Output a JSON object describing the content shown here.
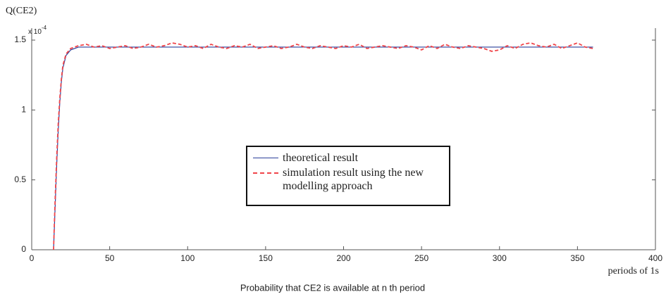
{
  "chart_data": {
    "type": "line",
    "y_label": "Q(CE2)",
    "y_multiplier": "x 10",
    "y_multiplier_exp": "-4",
    "x_label": "periods of 1s",
    "caption": "Probability that CE2 is available at n th period",
    "xlim": [
      0,
      400
    ],
    "xticks": [
      0,
      50,
      100,
      150,
      200,
      250,
      300,
      350,
      400
    ],
    "ylim": [
      0,
      1.5
    ],
    "yticks": [
      0,
      0.5,
      1,
      1.5
    ],
    "series": [
      {
        "name": "theoretical result",
        "color": "#2a3f9a",
        "dash": false,
        "x": [
          14,
          15,
          16,
          17,
          18,
          19,
          20,
          22,
          25,
          30,
          360
        ],
        "values": [
          0,
          0.3,
          0.6,
          0.85,
          1.05,
          1.2,
          1.3,
          1.39,
          1.43,
          1.45,
          1.45
        ]
      },
      {
        "name": "simulation result using the new modelling approach",
        "color": "#f0454a",
        "dash": true,
        "x": [
          14,
          15,
          16,
          17,
          18,
          19,
          20,
          22,
          25,
          30,
          35,
          40,
          45,
          50,
          55,
          60,
          65,
          70,
          75,
          80,
          85,
          90,
          95,
          100,
          105,
          110,
          115,
          120,
          125,
          130,
          135,
          140,
          145,
          150,
          155,
          160,
          165,
          170,
          175,
          180,
          185,
          190,
          195,
          200,
          205,
          210,
          215,
          220,
          225,
          230,
          235,
          240,
          245,
          250,
          255,
          260,
          265,
          270,
          275,
          280,
          285,
          290,
          295,
          300,
          305,
          310,
          315,
          320,
          325,
          330,
          335,
          340,
          345,
          350,
          355,
          360
        ],
        "values": [
          0,
          0.35,
          0.65,
          0.9,
          1.08,
          1.22,
          1.32,
          1.4,
          1.44,
          1.46,
          1.47,
          1.45,
          1.46,
          1.44,
          1.45,
          1.46,
          1.44,
          1.45,
          1.47,
          1.45,
          1.46,
          1.48,
          1.47,
          1.45,
          1.46,
          1.44,
          1.47,
          1.45,
          1.44,
          1.46,
          1.45,
          1.47,
          1.44,
          1.45,
          1.46,
          1.44,
          1.45,
          1.47,
          1.45,
          1.44,
          1.46,
          1.45,
          1.44,
          1.46,
          1.45,
          1.47,
          1.44,
          1.45,
          1.46,
          1.45,
          1.44,
          1.46,
          1.45,
          1.43,
          1.46,
          1.44,
          1.47,
          1.45,
          1.44,
          1.46,
          1.45,
          1.44,
          1.42,
          1.43,
          1.46,
          1.44,
          1.47,
          1.48,
          1.46,
          1.45,
          1.47,
          1.44,
          1.46,
          1.48,
          1.45,
          1.44
        ]
      }
    ]
  }
}
